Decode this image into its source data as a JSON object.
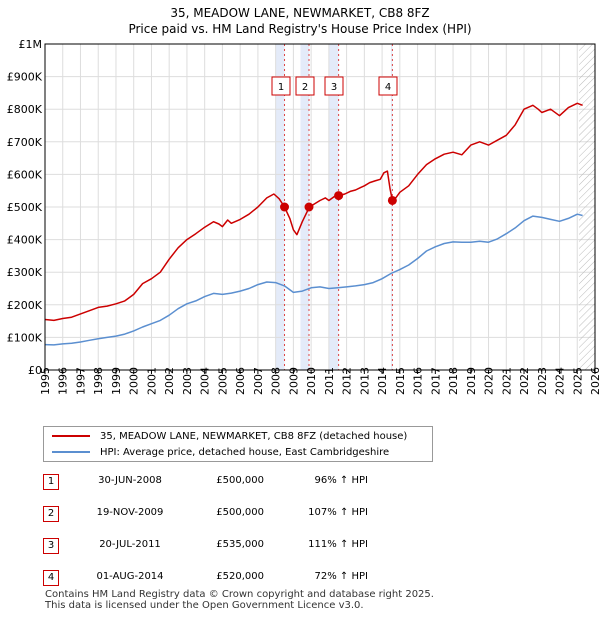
{
  "chart_data": {
    "type": "line",
    "title": "35, MEADOW LANE, NEWMARKET, CB8 8FZ",
    "subtitle": "Price paid vs. HM Land Registry's House Price Index (HPI)",
    "xlim": [
      1995,
      2026
    ],
    "ylim": [
      0,
      1000000
    ],
    "xticks": [
      "1995",
      "1996",
      "1997",
      "1998",
      "1999",
      "2000",
      "2001",
      "2002",
      "2003",
      "2004",
      "2005",
      "2006",
      "2007",
      "2008",
      "2009",
      "2010",
      "2011",
      "2012",
      "2013",
      "2014",
      "2015",
      "2016",
      "2017",
      "2018",
      "2019",
      "2020",
      "2021",
      "2022",
      "2023",
      "2024",
      "2025",
      "2026"
    ],
    "yticks": [
      {
        "value": 0,
        "label": "£0"
      },
      {
        "value": 100000,
        "label": "£100K"
      },
      {
        "value": 200000,
        "label": "£200K"
      },
      {
        "value": 300000,
        "label": "£300K"
      },
      {
        "value": 400000,
        "label": "£400K"
      },
      {
        "value": 500000,
        "label": "£500K"
      },
      {
        "value": 600000,
        "label": "£600K"
      },
      {
        "value": 700000,
        "label": "£700K"
      },
      {
        "value": 800000,
        "label": "£800K"
      },
      {
        "value": 900000,
        "label": "£900K"
      },
      {
        "value": 1000000,
        "label": "£1M"
      }
    ],
    "grid": true,
    "future_hatch_from": 2025.1,
    "sale_bands": [
      [
        2008.0,
        2008.5
      ],
      [
        2009.4,
        2009.9
      ],
      [
        2011.0,
        2011.55
      ],
      [
        2014.5,
        2014.58
      ]
    ],
    "series": [
      {
        "name": "35, MEADOW LANE, NEWMARKET, CB8 8FZ (detached house)",
        "color": "#cc0000",
        "points": [
          [
            1995.0,
            155000
          ],
          [
            1995.5,
            152000
          ],
          [
            1996.0,
            158000
          ],
          [
            1996.5,
            162000
          ],
          [
            1997.0,
            172000
          ],
          [
            1997.5,
            182000
          ],
          [
            1998.0,
            192000
          ],
          [
            1998.5,
            196000
          ],
          [
            1999.0,
            203000
          ],
          [
            1999.5,
            212000
          ],
          [
            2000.0,
            232000
          ],
          [
            2000.5,
            265000
          ],
          [
            2001.0,
            280000
          ],
          [
            2001.5,
            300000
          ],
          [
            2002.0,
            340000
          ],
          [
            2002.5,
            375000
          ],
          [
            2003.0,
            400000
          ],
          [
            2003.5,
            418000
          ],
          [
            2004.0,
            438000
          ],
          [
            2004.5,
            455000
          ],
          [
            2004.8,
            448000
          ],
          [
            2005.0,
            440000
          ],
          [
            2005.3,
            460000
          ],
          [
            2005.5,
            450000
          ],
          [
            2006.0,
            462000
          ],
          [
            2006.5,
            478000
          ],
          [
            2007.0,
            500000
          ],
          [
            2007.5,
            528000
          ],
          [
            2007.9,
            540000
          ],
          [
            2008.2,
            525000
          ],
          [
            2008.5,
            500000
          ],
          [
            2008.8,
            465000
          ],
          [
            2009.0,
            430000
          ],
          [
            2009.2,
            415000
          ],
          [
            2009.5,
            455000
          ],
          [
            2009.9,
            500000
          ],
          [
            2010.2,
            510000
          ],
          [
            2010.5,
            520000
          ],
          [
            2010.8,
            528000
          ],
          [
            2011.0,
            520000
          ],
          [
            2011.3,
            532000
          ],
          [
            2011.55,
            535000
          ],
          [
            2011.9,
            540000
          ],
          [
            2012.2,
            548000
          ],
          [
            2012.5,
            552000
          ],
          [
            2012.8,
            560000
          ],
          [
            2013.0,
            565000
          ],
          [
            2013.3,
            575000
          ],
          [
            2013.6,
            580000
          ],
          [
            2013.9,
            585000
          ],
          [
            2014.1,
            605000
          ],
          [
            2014.3,
            610000
          ],
          [
            2014.45,
            555000
          ],
          [
            2014.58,
            520000
          ],
          [
            2014.8,
            530000
          ],
          [
            2015.0,
            545000
          ],
          [
            2015.5,
            565000
          ],
          [
            2016.0,
            600000
          ],
          [
            2016.5,
            630000
          ],
          [
            2017.0,
            648000
          ],
          [
            2017.5,
            662000
          ],
          [
            2018.0,
            668000
          ],
          [
            2018.5,
            660000
          ],
          [
            2019.0,
            690000
          ],
          [
            2019.5,
            700000
          ],
          [
            2020.0,
            690000
          ],
          [
            2020.5,
            705000
          ],
          [
            2021.0,
            720000
          ],
          [
            2021.5,
            752000
          ],
          [
            2022.0,
            800000
          ],
          [
            2022.5,
            812000
          ],
          [
            2022.8,
            800000
          ],
          [
            2023.0,
            790000
          ],
          [
            2023.5,
            800000
          ],
          [
            2024.0,
            780000
          ],
          [
            2024.5,
            805000
          ],
          [
            2025.0,
            818000
          ],
          [
            2025.3,
            812000
          ]
        ]
      },
      {
        "name": "HPI: Average price, detached house, East Cambridgeshire",
        "color": "#5b8fd0",
        "points": [
          [
            1995.0,
            78000
          ],
          [
            1995.5,
            77000
          ],
          [
            1996.0,
            80000
          ],
          [
            1996.5,
            82000
          ],
          [
            1997.0,
            86000
          ],
          [
            1997.5,
            91000
          ],
          [
            1998.0,
            96000
          ],
          [
            1998.5,
            100000
          ],
          [
            1999.0,
            104000
          ],
          [
            1999.5,
            110000
          ],
          [
            2000.0,
            120000
          ],
          [
            2000.5,
            132000
          ],
          [
            2001.0,
            142000
          ],
          [
            2001.5,
            152000
          ],
          [
            2002.0,
            168000
          ],
          [
            2002.5,
            188000
          ],
          [
            2003.0,
            203000
          ],
          [
            2003.5,
            212000
          ],
          [
            2004.0,
            225000
          ],
          [
            2004.5,
            235000
          ],
          [
            2005.0,
            232000
          ],
          [
            2005.5,
            236000
          ],
          [
            2006.0,
            242000
          ],
          [
            2006.5,
            250000
          ],
          [
            2007.0,
            262000
          ],
          [
            2007.5,
            270000
          ],
          [
            2008.0,
            268000
          ],
          [
            2008.5,
            258000
          ],
          [
            2009.0,
            238000
          ],
          [
            2009.5,
            242000
          ],
          [
            2010.0,
            252000
          ],
          [
            2010.5,
            255000
          ],
          [
            2011.0,
            250000
          ],
          [
            2011.5,
            252000
          ],
          [
            2012.0,
            255000
          ],
          [
            2012.5,
            258000
          ],
          [
            2013.0,
            262000
          ],
          [
            2013.5,
            268000
          ],
          [
            2014.0,
            280000
          ],
          [
            2014.5,
            296000
          ],
          [
            2015.0,
            308000
          ],
          [
            2015.5,
            322000
          ],
          [
            2016.0,
            342000
          ],
          [
            2016.5,
            365000
          ],
          [
            2017.0,
            378000
          ],
          [
            2017.5,
            388000
          ],
          [
            2018.0,
            393000
          ],
          [
            2018.5,
            392000
          ],
          [
            2019.0,
            392000
          ],
          [
            2019.5,
            395000
          ],
          [
            2020.0,
            392000
          ],
          [
            2020.5,
            402000
          ],
          [
            2021.0,
            418000
          ],
          [
            2021.5,
            436000
          ],
          [
            2022.0,
            458000
          ],
          [
            2022.5,
            472000
          ],
          [
            2023.0,
            468000
          ],
          [
            2023.5,
            462000
          ],
          [
            2024.0,
            456000
          ],
          [
            2024.5,
            465000
          ],
          [
            2025.0,
            478000
          ],
          [
            2025.3,
            474000
          ]
        ]
      }
    ],
    "sales": [
      {
        "id": "1",
        "year": 2008.5,
        "price": 500000
      },
      {
        "id": "2",
        "year": 2009.88,
        "price": 500000
      },
      {
        "id": "3",
        "year": 2011.55,
        "price": 535000
      },
      {
        "id": "4",
        "year": 2014.58,
        "price": 520000
      }
    ]
  },
  "legend": {
    "property_label": "35, MEADOW LANE, NEWMARKET, CB8 8FZ (detached house)",
    "hpi_label": "HPI: Average price, detached house, East Cambridgeshire"
  },
  "sales_table": [
    {
      "id": "1",
      "date": "30-JUN-2008",
      "price": "£500,000",
      "hpi": "96% ↑ HPI"
    },
    {
      "id": "2",
      "date": "19-NOV-2009",
      "price": "£500,000",
      "hpi": "107% ↑ HPI"
    },
    {
      "id": "3",
      "date": "20-JUL-2011",
      "price": "£535,000",
      "hpi": "111% ↑ HPI"
    },
    {
      "id": "4",
      "date": "01-AUG-2014",
      "price": "£520,000",
      "hpi": "72% ↑ HPI"
    }
  ],
  "footer": {
    "line1": "Contains HM Land Registry data © Crown copyright and database right 2025.",
    "line2": "This data is licensed under the Open Government Licence v3.0."
  }
}
